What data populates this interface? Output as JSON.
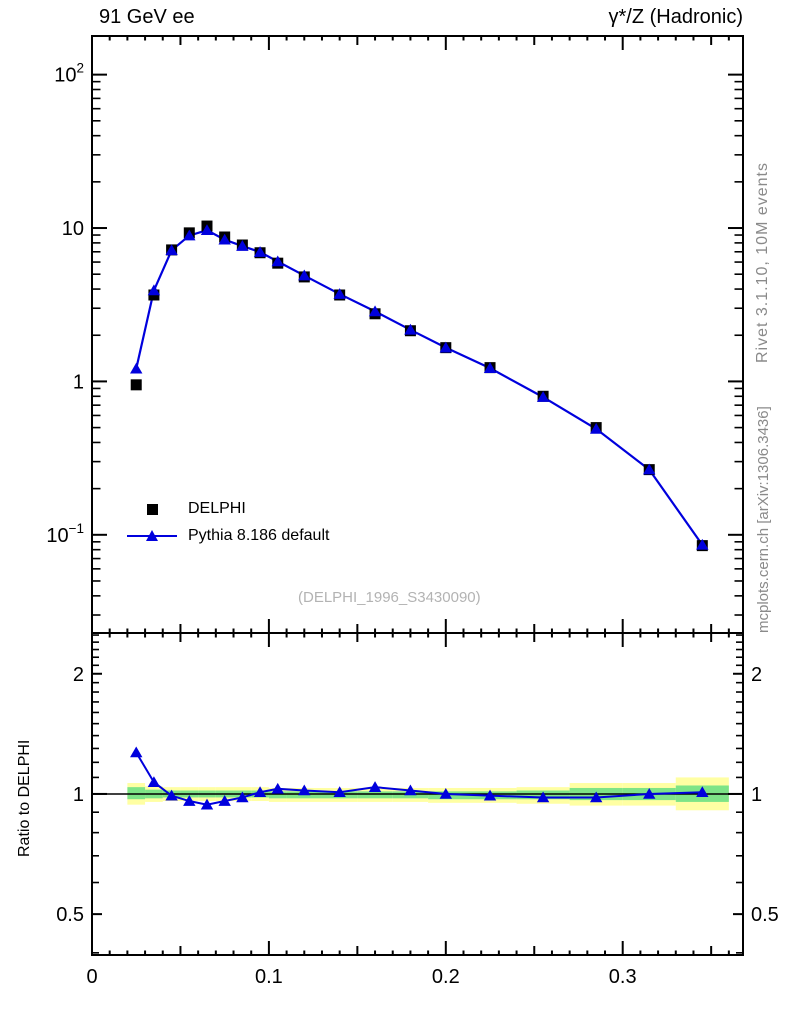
{
  "chart_data": {
    "type": "line",
    "title_left": "91 GeV ee",
    "title_right": "γ*/Z (Hadronic)",
    "right_label_top": "Rivet 3.1.10,  10M events",
    "right_label_bottom": "mcplots.cern.ch [arXiv:1306.3436]",
    "watermark": "(DELPHI_1996_S3430090)",
    "ratio_ylabel": "Ratio to DELPHI",
    "colors": {
      "pythia_blue": "#0000dd",
      "delphi_black": "#000000",
      "band_outer_yellow": "#ffffa3",
      "band_inner_green": "#7ee487",
      "frame": "#000000"
    },
    "x_axis": {
      "min": 0,
      "max": 0.368,
      "minor_step": 0.01,
      "mid_step": 0.05,
      "major_step": 0.1,
      "ticks": [
        {
          "value": 0,
          "label": "0"
        },
        {
          "value": 0.1,
          "label": "0.1"
        },
        {
          "value": 0.2,
          "label": "0.2"
        },
        {
          "value": 0.3,
          "label": "0.3"
        }
      ]
    },
    "y_main": {
      "scale": "log",
      "min": 0.0229,
      "max": 178.6,
      "ticks": [
        {
          "value": 100,
          "base": "10",
          "exp": "2"
        },
        {
          "value": 10,
          "base": "10",
          "exp": ""
        },
        {
          "value": 1,
          "base": "1",
          "exp": ""
        },
        {
          "value": 0.1,
          "base": "10",
          "exp": "−1"
        }
      ]
    },
    "y_ratio": {
      "scale": "log",
      "min": 0.395,
      "max": 2.53,
      "ticks": [
        {
          "value": 2,
          "label": "2"
        },
        {
          "value": 1,
          "label": "1"
        },
        {
          "value": 0.5,
          "label": "0.5"
        }
      ]
    },
    "bin_edges": [
      0.02,
      0.03,
      0.04,
      0.05,
      0.06,
      0.07,
      0.08,
      0.09,
      0.1,
      0.11,
      0.13,
      0.15,
      0.17,
      0.19,
      0.21,
      0.24,
      0.27,
      0.3,
      0.33,
      0.36
    ],
    "bin_centers": [
      0.025,
      0.035,
      0.045,
      0.055,
      0.065,
      0.075,
      0.085,
      0.095,
      0.105,
      0.12,
      0.14,
      0.16,
      0.18,
      0.2,
      0.225,
      0.255,
      0.285,
      0.315,
      0.345
    ],
    "series": [
      {
        "name": "DELPHI",
        "marker": "square",
        "color": "#000000",
        "line": false,
        "values": [
          0.95,
          3.66,
          7.2,
          9.3,
          10.3,
          8.74,
          7.75,
          6.9,
          5.9,
          4.8,
          3.66,
          2.76,
          2.14,
          1.66,
          1.23,
          0.8,
          0.5,
          0.266,
          0.085
        ]
      },
      {
        "name": "Pythia 8.186 default",
        "marker": "triangle",
        "color": "#0000dd",
        "line": true,
        "values": [
          1.21,
          3.92,
          7.16,
          8.93,
          9.68,
          8.39,
          7.63,
          6.97,
          6.05,
          4.9,
          3.71,
          2.86,
          2.17,
          1.66,
          1.22,
          0.79,
          0.49,
          0.266,
          0.086
        ]
      }
    ],
    "ratio": {
      "name": "Pythia / DELPHI",
      "values": [
        1.27,
        1.07,
        0.99,
        0.96,
        0.94,
        0.96,
        0.98,
        1.01,
        1.03,
        1.02,
        1.01,
        1.04,
        1.02,
        1.0,
        0.99,
        0.98,
        0.98,
        1.0,
        1.01
      ],
      "bands": [
        {
          "x0": 0.02,
          "x1": 0.03,
          "outer": [
            0.94,
            1.065
          ],
          "inner": [
            0.97,
            1.04
          ]
        },
        {
          "x0": 0.03,
          "x1": 0.04,
          "outer": [
            0.955,
            1.045
          ],
          "inner": [
            0.975,
            1.025
          ]
        },
        {
          "x0": 0.04,
          "x1": 0.05,
          "outer": [
            0.96,
            1.04
          ],
          "inner": [
            0.98,
            1.02
          ]
        },
        {
          "x0": 0.05,
          "x1": 0.06,
          "outer": [
            0.96,
            1.04
          ],
          "inner": [
            0.98,
            1.02
          ]
        },
        {
          "x0": 0.06,
          "x1": 0.07,
          "outer": [
            0.96,
            1.04
          ],
          "inner": [
            0.98,
            1.02
          ]
        },
        {
          "x0": 0.07,
          "x1": 0.08,
          "outer": [
            0.96,
            1.04
          ],
          "inner": [
            0.98,
            1.02
          ]
        },
        {
          "x0": 0.08,
          "x1": 0.09,
          "outer": [
            0.96,
            1.04
          ],
          "inner": [
            0.98,
            1.02
          ]
        },
        {
          "x0": 0.09,
          "x1": 0.1,
          "outer": [
            0.96,
            1.04
          ],
          "inner": [
            0.98,
            1.02
          ]
        },
        {
          "x0": 0.1,
          "x1": 0.11,
          "outer": [
            0.955,
            1.035
          ],
          "inner": [
            0.975,
            1.015
          ]
        },
        {
          "x0": 0.11,
          "x1": 0.13,
          "outer": [
            0.955,
            1.035
          ],
          "inner": [
            0.975,
            1.015
          ]
        },
        {
          "x0": 0.13,
          "x1": 0.15,
          "outer": [
            0.955,
            1.035
          ],
          "inner": [
            0.975,
            1.015
          ]
        },
        {
          "x0": 0.15,
          "x1": 0.17,
          "outer": [
            0.955,
            1.035
          ],
          "inner": [
            0.975,
            1.015
          ]
        },
        {
          "x0": 0.17,
          "x1": 0.19,
          "outer": [
            0.955,
            1.035
          ],
          "inner": [
            0.975,
            1.015
          ]
        },
        {
          "x0": 0.19,
          "x1": 0.21,
          "outer": [
            0.95,
            1.035
          ],
          "inner": [
            0.97,
            1.015
          ]
        },
        {
          "x0": 0.21,
          "x1": 0.24,
          "outer": [
            0.95,
            1.035
          ],
          "inner": [
            0.97,
            1.015
          ]
        },
        {
          "x0": 0.24,
          "x1": 0.27,
          "outer": [
            0.945,
            1.04
          ],
          "inner": [
            0.97,
            1.02
          ]
        },
        {
          "x0": 0.27,
          "x1": 0.3,
          "outer": [
            0.935,
            1.065
          ],
          "inner": [
            0.965,
            1.035
          ]
        },
        {
          "x0": 0.3,
          "x1": 0.33,
          "outer": [
            0.935,
            1.065
          ],
          "inner": [
            0.965,
            1.035
          ]
        },
        {
          "x0": 0.33,
          "x1": 0.36,
          "outer": [
            0.91,
            1.1
          ],
          "inner": [
            0.955,
            1.05
          ]
        }
      ]
    },
    "legend": [
      {
        "label": "DELPHI"
      },
      {
        "label": "Pythia 8.186 default"
      }
    ]
  }
}
